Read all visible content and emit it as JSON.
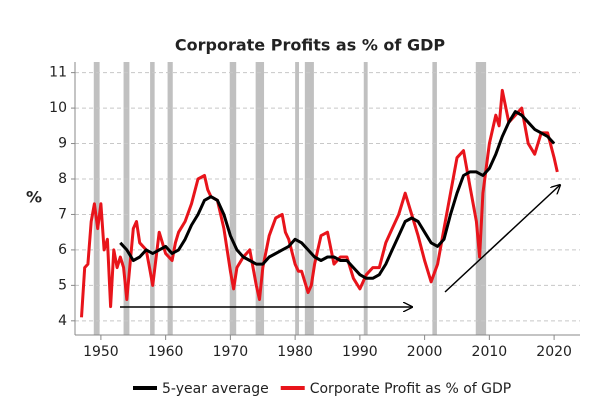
{
  "chart_data": {
    "type": "line",
    "title": "Corporate Profits as % of GDP",
    "y_label": "%",
    "xlim": [
      1946,
      2024
    ],
    "ylim": [
      3.6,
      11.3
    ],
    "xticks": [
      1950,
      1960,
      1970,
      1980,
      1990,
      2000,
      2010,
      2020
    ],
    "yticks": [
      4,
      5,
      6,
      7,
      8,
      9,
      10,
      11
    ],
    "grid": true,
    "legend": "bottom",
    "recession_color": "#c0c0c0",
    "recessions": [
      [
        1948.9,
        1949.8
      ],
      [
        1953.5,
        1954.4
      ],
      [
        1957.6,
        1958.3
      ],
      [
        1960.3,
        1961.1
      ],
      [
        1969.9,
        1970.9
      ],
      [
        1973.9,
        1975.2
      ],
      [
        1980,
        1980.6
      ],
      [
        1981.5,
        1982.9
      ],
      [
        1990.6,
        1991.2
      ],
      [
        2001.2,
        2001.9
      ],
      [
        2007.9,
        2009.5
      ]
    ],
    "series": [
      {
        "name": "5-year average",
        "color": "#000000",
        "x": [
          1953,
          1954,
          1955,
          1956,
          1957,
          1958,
          1959,
          1960,
          1961,
          1962,
          1963,
          1964,
          1965,
          1966,
          1967,
          1968,
          1969,
          1970,
          1971,
          1972,
          1973,
          1974,
          1975,
          1976,
          1977,
          1978,
          1979,
          1980,
          1981,
          1982,
          1983,
          1984,
          1985,
          1986,
          1987,
          1988,
          1989,
          1990,
          1991,
          1992,
          1993,
          1994,
          1995,
          1996,
          1997,
          1998,
          1999,
          2000,
          2001,
          2002,
          2003,
          2004,
          2005,
          2006,
          2007,
          2008,
          2009,
          2010,
          2011,
          2012,
          2013,
          2014,
          2015,
          2016,
          2017,
          2018,
          2019,
          2020
        ],
        "values": [
          6.2,
          6.0,
          5.7,
          5.8,
          6.0,
          5.9,
          6.0,
          6.1,
          5.9,
          6.0,
          6.3,
          6.7,
          7.0,
          7.4,
          7.5,
          7.4,
          7.0,
          6.4,
          6.0,
          5.8,
          5.7,
          5.6,
          5.6,
          5.8,
          5.9,
          6.0,
          6.1,
          6.3,
          6.2,
          6.0,
          5.8,
          5.7,
          5.8,
          5.8,
          5.7,
          5.7,
          5.5,
          5.3,
          5.2,
          5.2,
          5.3,
          5.6,
          6.0,
          6.4,
          6.8,
          6.9,
          6.8,
          6.5,
          6.2,
          6.1,
          6.3,
          7.0,
          7.6,
          8.1,
          8.2,
          8.2,
          8.1,
          8.3,
          8.7,
          9.2,
          9.6,
          9.9,
          9.8,
          9.6,
          9.4,
          9.3,
          9.2,
          9.0
        ]
      },
      {
        "name": "Corporate Profit as % of GDP",
        "color": "#e8141b",
        "x": [
          1947,
          1947.5,
          1948,
          1948.5,
          1949,
          1949.5,
          1950,
          1950.5,
          1951,
          1951.5,
          1952,
          1952.5,
          1953,
          1953.5,
          1954,
          1955,
          1955.5,
          1956,
          1957,
          1957.5,
          1958,
          1959,
          1959.5,
          1960,
          1961,
          1961.5,
          1962,
          1963,
          1964,
          1965,
          1966,
          1966.5,
          1967,
          1968,
          1969,
          1970,
          1970.5,
          1971,
          1972,
          1973,
          1974,
          1974.5,
          1975,
          1976,
          1977,
          1978,
          1978.5,
          1979,
          1980,
          1980.5,
          1981,
          1982,
          1982.5,
          1983,
          1984,
          1985,
          1986,
          1987,
          1988,
          1989,
          1990,
          1991,
          1992,
          1993,
          1994,
          1995,
          1996,
          1997,
          1998,
          1999,
          2000,
          2001,
          2002,
          2003,
          2004,
          2005,
          2006,
          2007,
          2008,
          2008.5,
          2009,
          2010,
          2011,
          2011.5,
          2012,
          2013,
          2014,
          2015,
          2016,
          2017,
          2018,
          2019,
          2020,
          2020.5
        ],
        "values": [
          4.1,
          5.5,
          5.6,
          6.8,
          7.3,
          6.6,
          7.3,
          6.0,
          6.3,
          4.4,
          6.0,
          5.5,
          5.8,
          5.5,
          4.6,
          6.6,
          6.8,
          6.2,
          6.0,
          5.5,
          5.0,
          6.5,
          6.2,
          5.9,
          5.7,
          6.2,
          6.5,
          6.8,
          7.3,
          8.0,
          8.1,
          7.7,
          7.5,
          7.4,
          6.6,
          5.4,
          4.9,
          5.5,
          5.8,
          6.0,
          5.0,
          4.6,
          5.5,
          6.4,
          6.9,
          7.0,
          6.5,
          6.3,
          5.6,
          5.4,
          5.4,
          4.8,
          5.0,
          5.6,
          6.4,
          6.5,
          5.6,
          5.8,
          5.8,
          5.2,
          4.9,
          5.3,
          5.5,
          5.5,
          6.2,
          6.6,
          7.0,
          7.6,
          7.0,
          6.4,
          5.7,
          5.1,
          5.6,
          6.6,
          7.6,
          8.6,
          8.8,
          7.8,
          6.8,
          5.8,
          7.6,
          9.0,
          9.8,
          9.5,
          10.5,
          9.6,
          9.8,
          10.0,
          9.0,
          8.7,
          9.3,
          9.3,
          8.6,
          8.2
        ]
      }
    ]
  }
}
